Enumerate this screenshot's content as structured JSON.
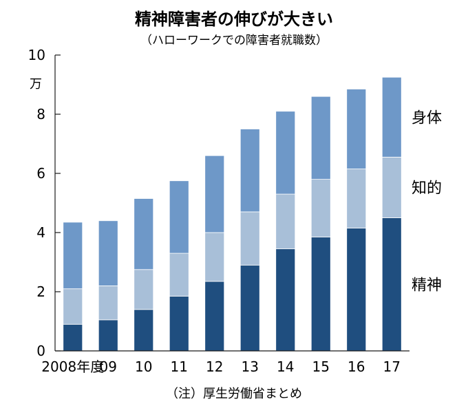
{
  "chart_data": {
    "type": "bar",
    "stacked": true,
    "title": "精神障害者の伸びが大きい",
    "subtitle": "（ハローワークでの障害者就職数）",
    "ylabel": "",
    "unit_label": "万",
    "ylim": [
      0,
      10
    ],
    "yticks": [
      "0",
      "2",
      "4",
      "6",
      "8",
      "10"
    ],
    "categories": [
      "2008年度",
      "09",
      "10",
      "11",
      "12",
      "13",
      "14",
      "15",
      "16",
      "17"
    ],
    "series": [
      {
        "name": "精神",
        "color": "#1f4e7f",
        "values": [
          0.9,
          1.05,
          1.4,
          1.85,
          2.35,
          2.9,
          3.45,
          3.85,
          4.15,
          4.5
        ]
      },
      {
        "name": "知的",
        "color": "#a8bfd8",
        "values": [
          1.2,
          1.15,
          1.35,
          1.45,
          1.65,
          1.8,
          1.85,
          1.95,
          2.0,
          2.05
        ]
      },
      {
        "name": "身体",
        "color": "#6e98c8",
        "values": [
          2.25,
          2.2,
          2.4,
          2.45,
          2.6,
          2.8,
          2.8,
          2.8,
          2.7,
          2.7
        ]
      }
    ],
    "legend_position": "right",
    "note": "（注）厚生労働省まとめ"
  },
  "colors": {
    "axis": "#1a1a1a",
    "bar_stroke": "#ffffff"
  }
}
